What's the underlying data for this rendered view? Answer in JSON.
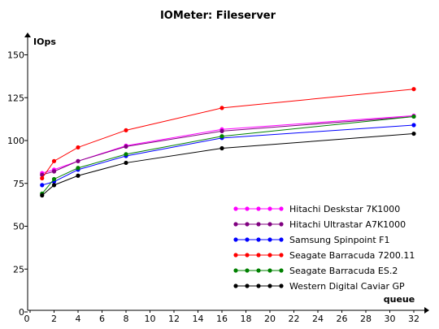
{
  "chart_data": {
    "type": "line",
    "title": "IOMeter: Fileserver",
    "xlabel": "queue",
    "ylabel": "IOps",
    "xlim": [
      0,
      33
    ],
    "ylim": [
      0,
      150
    ],
    "x_ticks": [
      0,
      2,
      4,
      6,
      8,
      10,
      12,
      14,
      16,
      18,
      20,
      22,
      24,
      26,
      28,
      30,
      32
    ],
    "y_ticks": [
      0,
      25,
      50,
      75,
      100,
      125,
      150
    ],
    "grid": false,
    "legend_position": "bottom-right",
    "x": [
      1,
      2,
      4,
      8,
      16,
      32
    ],
    "series": [
      {
        "name": "Hitachi Deskstar 7K1000",
        "color": "#ff00ff",
        "values": [
          81,
          83,
          88,
          97,
          106.5,
          114.5
        ]
      },
      {
        "name": "Hitachi Ultrastar A7K1000",
        "color": "#800080",
        "values": [
          80,
          82,
          88,
          96.5,
          105.5,
          114
        ]
      },
      {
        "name": "Samsung Spinpoint F1",
        "color": "#0000ff",
        "values": [
          74,
          76,
          83,
          91,
          101.5,
          109
        ]
      },
      {
        "name": "Seagate Barracuda 7200.11",
        "color": "#ff0000",
        "values": [
          78,
          88,
          96,
          106,
          119,
          130
        ]
      },
      {
        "name": "Seagate Barracuda ES.2",
        "color": "#008000",
        "values": [
          69,
          77.5,
          84,
          92,
          102.5,
          114
        ]
      },
      {
        "name": "Western Digital Caviar GP",
        "color": "#000000",
        "values": [
          68,
          74,
          79.5,
          87,
          95.5,
          104
        ]
      }
    ]
  }
}
